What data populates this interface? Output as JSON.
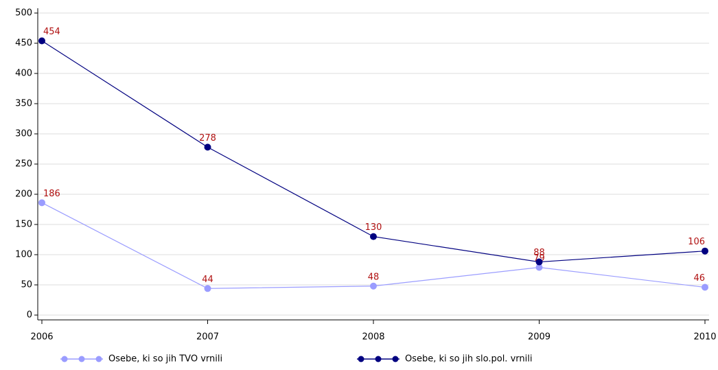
{
  "chart_data": {
    "type": "line",
    "x": [
      2006,
      2007,
      2008,
      2009,
      2010
    ],
    "xlim": [
      2006,
      2010
    ],
    "xticks": [
      2006,
      2007,
      2008,
      2009,
      2010
    ],
    "ylim": [
      0,
      500
    ],
    "yticks": [
      0,
      50,
      100,
      150,
      200,
      250,
      300,
      350,
      400,
      450,
      500
    ],
    "grid": true,
    "legend": "bottom",
    "series": [
      {
        "name": "Osebe, ki so jih TVO vrnili",
        "color": "#9a9cff",
        "values": [
          186,
          44,
          48,
          79,
          46
        ]
      },
      {
        "name": "Osebe, ki so jih slo.pol. vrnili",
        "color": "#000080",
        "values": [
          454,
          278,
          130,
          88,
          106
        ]
      }
    ]
  }
}
